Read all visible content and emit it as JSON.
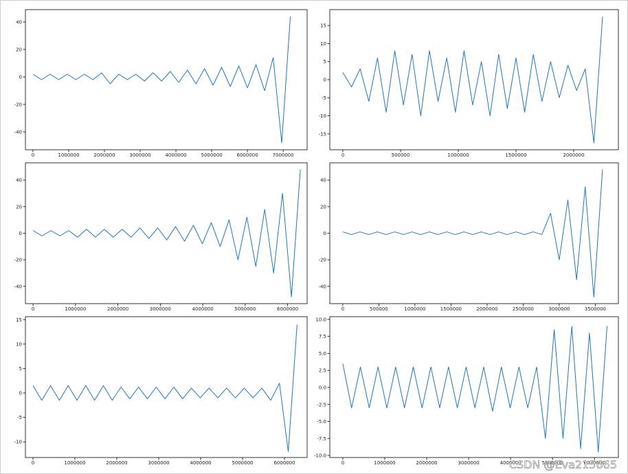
{
  "chart_data": [
    {
      "type": "line",
      "color": "#1f77b4",
      "x": [
        0,
        240000,
        480000,
        720000,
        960000,
        1200000,
        1440000,
        1680000,
        1920000,
        2160000,
        2400000,
        2640000,
        2880000,
        3120000,
        3360000,
        3600000,
        3840000,
        4080000,
        4320000,
        4560000,
        4800000,
        5040000,
        5280000,
        5520000,
        5760000,
        6000000,
        6240000,
        6480000,
        6720000,
        6960000,
        7200000
      ],
      "values": [
        2,
        -2,
        2,
        -2,
        2,
        -2,
        2,
        -2,
        3,
        -5,
        2,
        -2,
        2,
        -3,
        3,
        -3,
        4,
        -4,
        5,
        -5,
        6,
        -6,
        7,
        -7,
        8,
        -8,
        9,
        -10,
        14,
        -48,
        44
      ],
      "xlim": [
        -210000,
        7670000
      ],
      "ylim": [
        -53,
        49
      ],
      "xticks": [
        0,
        1000000,
        2000000,
        3000000,
        4000000,
        5000000,
        6000000,
        7000000
      ],
      "yticks": [
        -40,
        -20,
        0,
        20,
        40
      ]
    },
    {
      "type": "line",
      "color": "#1f77b4",
      "x": [
        0,
        75000,
        150000,
        225000,
        300000,
        375000,
        450000,
        525000,
        600000,
        675000,
        750000,
        825000,
        900000,
        975000,
        1050000,
        1125000,
        1200000,
        1275000,
        1350000,
        1425000,
        1500000,
        1575000,
        1650000,
        1725000,
        1800000,
        1875000,
        1950000,
        2025000,
        2100000,
        2175000,
        2250000
      ],
      "values": [
        2,
        -2,
        3,
        -6,
        6,
        -9,
        8,
        -7,
        7,
        -10,
        8,
        -6,
        6,
        -9,
        8,
        -7,
        5,
        -10,
        7,
        -8,
        6,
        -9,
        7,
        -6,
        5,
        -5,
        4,
        -3,
        3,
        -17.5,
        17.5
      ],
      "xlim": [
        -113000,
        2387000
      ],
      "ylim": [
        -19.4,
        19.4
      ],
      "xticks": [
        0,
        500000,
        1000000,
        1500000,
        2000000
      ],
      "yticks": [
        -15,
        -10,
        -5,
        0,
        5,
        10,
        15
      ]
    },
    {
      "type": "line",
      "color": "#1f77b4",
      "x": [
        0,
        210000,
        420000,
        630000,
        840000,
        1050000,
        1260000,
        1470000,
        1680000,
        1890000,
        2100000,
        2310000,
        2520000,
        2730000,
        2940000,
        3150000,
        3360000,
        3570000,
        3780000,
        3990000,
        4200000,
        4410000,
        4620000,
        4830000,
        5040000,
        5250000,
        5460000,
        5670000,
        5880000,
        6090000,
        6300000
      ],
      "values": [
        2,
        -2,
        2,
        -2,
        2,
        -3,
        3,
        -3,
        3,
        -3,
        3,
        -3,
        4,
        -4,
        4,
        -5,
        5,
        -6,
        6,
        -8,
        8,
        -10,
        10,
        -20,
        12,
        -25,
        18,
        -30,
        30,
        -48,
        48
      ],
      "xlim": [
        -180000,
        6460000
      ],
      "ylim": [
        -53,
        53
      ],
      "xticks": [
        0,
        1000000,
        2000000,
        3000000,
        4000000,
        5000000,
        6000000
      ],
      "yticks": [
        -40,
        -20,
        0,
        20,
        40
      ]
    },
    {
      "type": "line",
      "color": "#1f77b4",
      "x": [
        0,
        120000,
        240000,
        360000,
        480000,
        600000,
        720000,
        840000,
        960000,
        1080000,
        1200000,
        1320000,
        1440000,
        1560000,
        1680000,
        1800000,
        1920000,
        2040000,
        2160000,
        2280000,
        2400000,
        2520000,
        2640000,
        2760000,
        2880000,
        3000000,
        3120000,
        3240000,
        3360000,
        3480000,
        3600000
      ],
      "values": [
        1,
        -1,
        1,
        -1,
        1,
        -1,
        1,
        -1,
        1,
        -1,
        1,
        -1,
        1,
        -1,
        1,
        -1,
        1,
        -1,
        1,
        -1,
        1,
        -1,
        1,
        -1,
        15,
        -20,
        25,
        -35,
        35,
        -48,
        48
      ],
      "xlim": [
        -180000,
        3820000
      ],
      "ylim": [
        -53,
        53
      ],
      "xticks": [
        0,
        500000,
        1000000,
        1500000,
        2000000,
        2500000,
        3000000,
        3500000
      ],
      "yticks": [
        -40,
        -20,
        0,
        20,
        40
      ]
    },
    {
      "type": "line",
      "color": "#1f77b4",
      "x": [
        0,
        210000,
        420000,
        630000,
        840000,
        1050000,
        1260000,
        1470000,
        1680000,
        1890000,
        2100000,
        2310000,
        2520000,
        2730000,
        2940000,
        3150000,
        3360000,
        3570000,
        3780000,
        3990000,
        4200000,
        4410000,
        4620000,
        4830000,
        5040000,
        5250000,
        5460000,
        5670000,
        5880000,
        6090000,
        6300000
      ],
      "values": [
        1.5,
        -1.5,
        1.5,
        -1.5,
        1.5,
        -1.5,
        1.5,
        -1.5,
        1.5,
        -1.5,
        1.2,
        -1.2,
        1.2,
        -1.2,
        1.2,
        -1.2,
        1.2,
        -1.2,
        1,
        -1,
        1,
        -1,
        1,
        -1,
        1,
        -1,
        1,
        -1.5,
        2,
        -12,
        14
      ],
      "xlim": [
        -180000,
        6540000
      ],
      "ylim": [
        -13.2,
        15.6
      ],
      "xticks": [
        0,
        1000000,
        2000000,
        3000000,
        4000000,
        5000000,
        6000000
      ],
      "yticks": [
        -10,
        -5,
        0,
        5,
        10,
        15
      ]
    },
    {
      "type": "line",
      "color": "#1f77b4",
      "x": [
        0,
        210000,
        420000,
        630000,
        840000,
        1050000,
        1260000,
        1470000,
        1680000,
        1890000,
        2100000,
        2310000,
        2520000,
        2730000,
        2940000,
        3150000,
        3360000,
        3570000,
        3780000,
        3990000,
        4200000,
        4410000,
        4620000,
        4830000,
        5040000,
        5250000,
        5460000,
        5670000,
        5880000,
        6090000,
        6300000
      ],
      "values": [
        3.5,
        -3,
        3,
        -3,
        3,
        -3,
        3,
        -3,
        3,
        -3,
        3,
        -3,
        3,
        -3,
        3,
        -3,
        3,
        -3.5,
        3,
        -3,
        3,
        -3,
        3,
        -7.5,
        8.5,
        -7.5,
        9,
        -9,
        8,
        -9.5,
        9
      ],
      "xlim": [
        -310000,
        6570000
      ],
      "ylim": [
        -10.3,
        10.4
      ],
      "xticks": [
        0,
        1000000,
        2000000,
        3000000,
        4000000,
        5000000,
        6000000
      ],
      "yticks": [
        {
          "value": -10,
          "label": "-10.0"
        },
        {
          "value": -7.5,
          "label": "-7.5"
        },
        {
          "value": -5,
          "label": "-5.0"
        },
        {
          "value": -2.5,
          "label": "-2.5"
        },
        {
          "value": 0,
          "label": "0.0"
        },
        {
          "value": 2.5,
          "label": "2.5"
        },
        {
          "value": 5,
          "label": "5.0"
        },
        {
          "value": 7.5,
          "label": "7.5"
        },
        {
          "value": 10,
          "label": "10.0"
        }
      ]
    }
  ],
  "watermark": "CSDN @Eva215665"
}
